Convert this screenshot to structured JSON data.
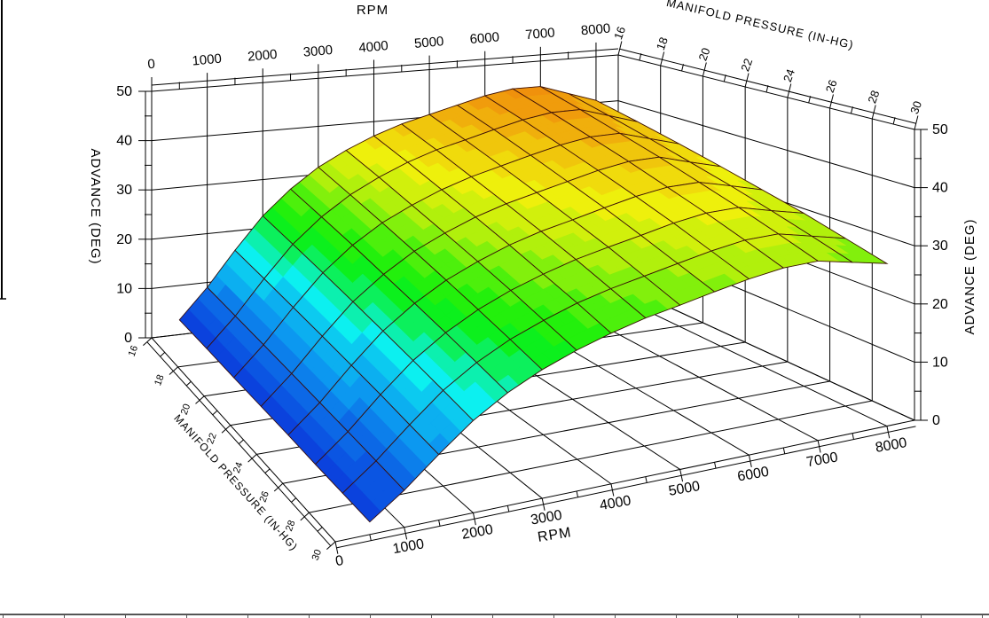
{
  "chart_data": {
    "type": "surface",
    "titles": {
      "rpm_top": "RPM",
      "mp_top": "MANIFOLD PRESSURE (IN-HG)",
      "advance_left": "ADVANCE (DEG)",
      "advance_right": "ADVANCE (DEG)",
      "rpm_bottom": "RPM",
      "mp_bottom": "MANIFOLD PRESSURE (IN-HG)"
    },
    "axes": {
      "rpm": {
        "label": "RPM",
        "range": [
          0,
          8000
        ],
        "major_ticks": [
          0,
          1000,
          2000,
          3000,
          4000,
          5000,
          6000,
          7000,
          8000
        ],
        "minor_ticks": [
          500,
          1500,
          2500,
          3500,
          4500,
          5500,
          6500,
          7500
        ]
      },
      "manifold_pressure": {
        "label": "MANIFOLD PRESSURE (IN-HG)",
        "range": [
          16,
          30
        ],
        "major_ticks": [
          16,
          18,
          20,
          22,
          24,
          26,
          28,
          30
        ],
        "minor_ticks": [
          17,
          19,
          21,
          23,
          25,
          27,
          29
        ]
      },
      "advance": {
        "label": "ADVANCE (DEG)",
        "range": [
          0,
          50
        ],
        "major_ticks": [
          0,
          10,
          20,
          30,
          40,
          50
        ],
        "minor_ticks": [
          5,
          15,
          25,
          35,
          45
        ]
      }
    },
    "surface": {
      "rpm_points": [
        500,
        1000,
        1500,
        2000,
        2500,
        3000,
        3500,
        4000,
        4500,
        5000,
        5500,
        6000,
        6500,
        7000,
        7500,
        8000
      ],
      "manifold_pressure_points": [
        16,
        18,
        20,
        22,
        24,
        26,
        28,
        30
      ],
      "advance_table_by_map_row": [
        [
          3.0,
          9.0,
          16.0,
          22.5,
          27.5,
          31.5,
          34.5,
          37.0,
          39.0,
          40.5,
          42.0,
          43.5,
          44.5,
          44.5,
          42.5,
          40.5
        ],
        [
          2.9,
          8.6,
          15.3,
          21.5,
          26.3,
          30.1,
          33.0,
          35.4,
          37.3,
          38.7,
          40.2,
          41.6,
          42.5,
          42.5,
          40.6,
          38.7
        ],
        [
          2.7,
          8.2,
          14.6,
          20.5,
          25.1,
          28.7,
          31.4,
          33.7,
          35.5,
          36.9,
          38.3,
          39.6,
          40.5,
          40.5,
          38.7,
          36.9
        ],
        [
          2.6,
          7.8,
          13.9,
          19.5,
          23.8,
          27.3,
          29.9,
          32.1,
          33.8,
          35.1,
          36.4,
          37.7,
          38.6,
          38.6,
          36.8,
          35.1
        ],
        [
          2.5,
          7.4,
          13.2,
          18.5,
          22.6,
          25.9,
          28.4,
          30.5,
          32.1,
          33.3,
          34.6,
          35.8,
          36.6,
          36.6,
          35.0,
          33.3
        ],
        [
          2.3,
          7.0,
          12.5,
          17.5,
          21.4,
          24.5,
          26.9,
          28.8,
          30.4,
          31.6,
          32.7,
          33.9,
          34.7,
          34.7,
          33.1,
          31.6
        ],
        [
          2.2,
          6.6,
          11.7,
          16.5,
          20.2,
          23.1,
          25.3,
          27.2,
          28.6,
          29.7,
          30.8,
          31.9,
          32.7,
          32.7,
          31.2,
          29.7
        ],
        [
          2.1,
          6.2,
          11.0,
          15.5,
          19.0,
          21.7,
          23.8,
          25.5,
          26.9,
          27.9,
          29.0,
          30.0,
          30.7,
          30.7,
          29.3,
          27.9
        ]
      ],
      "color_band_step_deg": 2,
      "hue_stops": [
        [
          0,
          231
        ],
        [
          4,
          222
        ],
        [
          8,
          212
        ],
        [
          11,
          203
        ],
        [
          14,
          194
        ],
        [
          16,
          186
        ],
        [
          18,
          174
        ],
        [
          20,
          152
        ],
        [
          22,
          130
        ],
        [
          24,
          119
        ],
        [
          26,
          109
        ],
        [
          28,
          97
        ],
        [
          30,
          81
        ],
        [
          32,
          72
        ],
        [
          34,
          64
        ],
        [
          36,
          57
        ],
        [
          38,
          52
        ],
        [
          40,
          46
        ],
        [
          42,
          40
        ],
        [
          44,
          36
        ],
        [
          50,
          30
        ]
      ],
      "mesh_line_color": "#3a0e08"
    },
    "colors": {
      "background": "#ffffff",
      "grid": "#000000",
      "bottom_divider": "#555555",
      "window_border": "#000000"
    }
  }
}
